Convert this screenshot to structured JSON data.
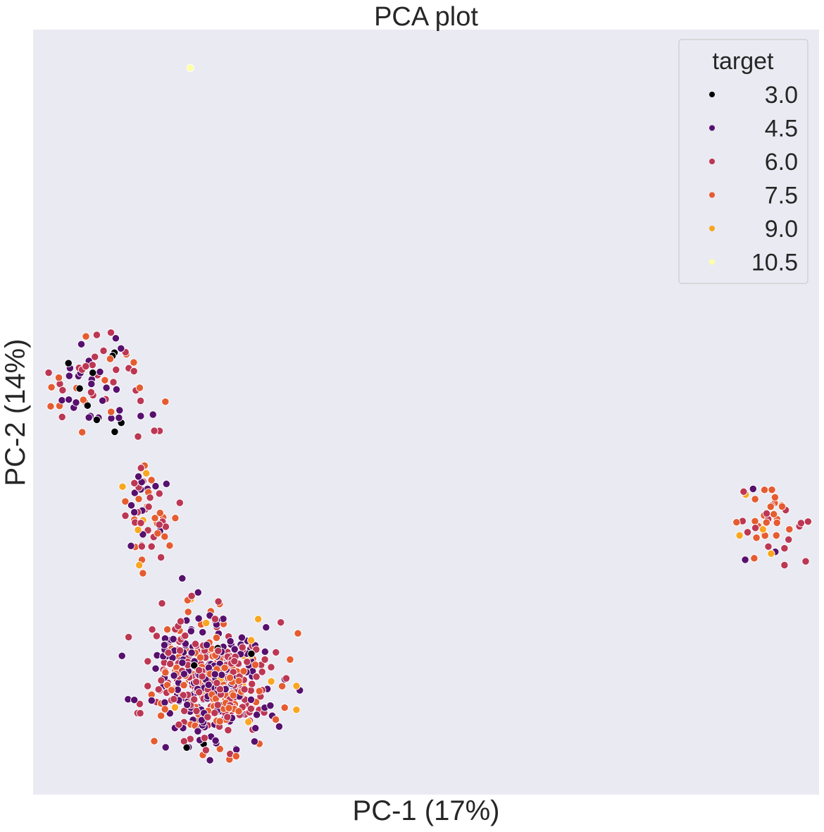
{
  "chart_data": {
    "type": "scatter",
    "title": "PCA plot",
    "xlabel": "PC-1 (17%)",
    "ylabel": "PC-2 (14%)",
    "xlim": [
      0,
      100
    ],
    "ylim": [
      0,
      100
    ],
    "grid": false,
    "background": "#eaeaf2",
    "legend": {
      "title": "target",
      "placement": "top-right",
      "entries": [
        {
          "label": "3.0",
          "color": "#000004"
        },
        {
          "label": "4.5",
          "color": "#57106e"
        },
        {
          "label": "6.0",
          "color": "#bc3754"
        },
        {
          "label": "7.5",
          "color": "#e55c30"
        },
        {
          "label": "9.0",
          "color": "#f9a621"
        },
        {
          "label": "10.5",
          "color": "#fcffa4"
        }
      ]
    },
    "clusters": [
      {
        "center": [
          8.5,
          54.0
        ],
        "spread": [
          3.0,
          3.6
        ],
        "count": 70,
        "mix": {
          "3.0": 0.12,
          "4.5": 0.38,
          "6.0": 0.28,
          "7.5": 0.22
        }
      },
      {
        "center": [
          14.5,
          37.5
        ],
        "spread": [
          1.8,
          4.2
        ],
        "count": 60,
        "mix": {
          "4.5": 0.35,
          "6.0": 0.32,
          "7.5": 0.28,
          "9.0": 0.05
        }
      },
      {
        "center": [
          22.5,
          15.0
        ],
        "spread": [
          3.6,
          3.8
        ],
        "count": 560,
        "mix": {
          "3.0": 0.03,
          "4.5": 0.37,
          "6.0": 0.34,
          "7.5": 0.23,
          "9.0": 0.03
        }
      },
      {
        "center": [
          94.0,
          35.5
        ],
        "spread": [
          2.0,
          2.7
        ],
        "count": 38,
        "mix": {
          "4.5": 0.03,
          "6.0": 0.32,
          "7.5": 0.57,
          "9.0": 0.08
        }
      }
    ],
    "points": [
      {
        "x": 20.0,
        "y": 95.0,
        "target": "10.5"
      },
      {
        "x": 33.5,
        "y": 14.2,
        "target": "9.0"
      },
      {
        "x": 33.5,
        "y": 11.1,
        "target": "9.0"
      },
      {
        "x": 30.3,
        "y": 14.8,
        "target": "9.0"
      },
      {
        "x": 93.9,
        "y": 31.5,
        "target": "9.0"
      },
      {
        "x": 13.5,
        "y": 30.0,
        "target": "9.0"
      },
      {
        "x": 14.4,
        "y": 42.0,
        "target": "9.0"
      },
      {
        "x": 4.5,
        "y": 56.4,
        "target": "3.0"
      },
      {
        "x": 8.1,
        "y": 49.0,
        "target": "3.0"
      },
      {
        "x": 16.4,
        "y": 25.0,
        "target": "6.0"
      },
      {
        "x": 22.5,
        "y": 4.5,
        "target": "4.5"
      },
      {
        "x": 98.6,
        "y": 35.7,
        "target": "6.0"
      },
      {
        "x": 98.3,
        "y": 30.5,
        "target": "6.0"
      },
      {
        "x": 95.6,
        "y": 30.0,
        "target": "6.0"
      },
      {
        "x": 90.4,
        "y": 39.6,
        "target": "6.0"
      },
      {
        "x": 89.5,
        "y": 35.6,
        "target": "7.5"
      },
      {
        "x": 90.6,
        "y": 30.7,
        "target": "4.5"
      },
      {
        "x": 7.1,
        "y": 49.3,
        "target": "4.5"
      },
      {
        "x": 9.9,
        "y": 60.4,
        "target": "6.0"
      },
      {
        "x": 30.9,
        "y": 18.6,
        "target": "6.0"
      },
      {
        "x": 32.2,
        "y": 15.2,
        "target": "6.0"
      }
    ]
  }
}
